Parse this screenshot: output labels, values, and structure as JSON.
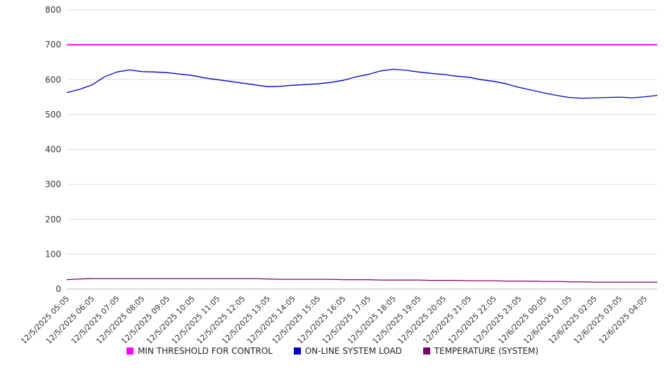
{
  "chart_data": {
    "type": "line",
    "title": "",
    "xlabel": "",
    "ylabel": "",
    "ylim": [
      0,
      800
    ],
    "y_ticks": [
      0,
      100,
      200,
      300,
      400,
      500,
      600,
      700,
      800
    ],
    "grid": "horizontal",
    "legend_position": "bottom",
    "x_label_every": 2,
    "x_labels": [
      "12/5/2025 05:05",
      "12/5/2025 06:05",
      "12/5/2025 07:05",
      "12/5/2025 08:05",
      "12/5/2025 09:05",
      "12/5/2025 10:05",
      "12/5/2025 11:05",
      "12/5/2025 12:05",
      "12/5/2025 13:05",
      "12/5/2025 14:05",
      "12/5/2025 15:05",
      "12/5/2025 16:05",
      "12/5/2025 17:05",
      "12/5/2025 18:05",
      "12/5/2025 19:05",
      "12/5/2025 20:05",
      "12/5/2025 21:05",
      "12/5/2025 22:05",
      "12/5/2025 23:05",
      "12/6/2025 00:05",
      "12/6/2025 01:05",
      "12/6/2025 02:05",
      "12/6/2025 03:05",
      "12/6/2025 04:05"
    ],
    "series": [
      {
        "name": "MIN THRESHOLD FOR CONTROL",
        "color": "#ff00ff",
        "constant": 700
      },
      {
        "name": "ON-LINE SYSTEM LOAD",
        "color": "#0000cc",
        "values": [
          563,
          572,
          585,
          608,
          622,
          628,
          623,
          622,
          620,
          616,
          612,
          605,
          600,
          595,
          590,
          585,
          580,
          581,
          584,
          586,
          588,
          592,
          598,
          608,
          615,
          625,
          630,
          627,
          622,
          618,
          615,
          610,
          607,
          600,
          595,
          588,
          578,
          570,
          562,
          555,
          549,
          547,
          548,
          549,
          550,
          548,
          551,
          555
        ]
      },
      {
        "name": "TEMPERATURE (SYSTEM)",
        "color": "#7a006e",
        "values": [
          27,
          29,
          30,
          30,
          30,
          30,
          30,
          30,
          30,
          30,
          30,
          30,
          30,
          30,
          30,
          30,
          29,
          28,
          28,
          28,
          28,
          28,
          27,
          27,
          27,
          26,
          26,
          26,
          26,
          25,
          25,
          25,
          24,
          24,
          24,
          23,
          23,
          23,
          22,
          22,
          21,
          21,
          20,
          20,
          20,
          20,
          20,
          20
        ]
      }
    ]
  }
}
